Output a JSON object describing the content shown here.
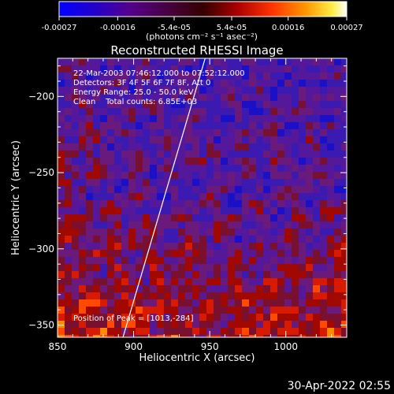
{
  "colorbar": {
    "tick_labels": [
      "-0.00027",
      "-0.00016",
      "-5.4e-05",
      "5.4e-05",
      "0.00016",
      "0.00027"
    ],
    "tick_values": [
      -0.00027,
      -0.00016,
      -5.4e-05,
      5.4e-05,
      0.00016,
      0.00027
    ],
    "range": [
      -0.00027,
      0.00027
    ],
    "units_label": "(photons cm⁻² s⁻¹ asec⁻²)",
    "colors": [
      "#0000ff",
      "#2200aa",
      "#440066",
      "#440000",
      "#990000",
      "#ff3300",
      "#ff8800",
      "#ffdd00",
      "#ffffff"
    ]
  },
  "plot": {
    "title": "Reconstructed RHESSI Image",
    "xlabel": "Heliocentric X (arcsec)",
    "ylabel": "Heliocentric Y (arcsec)",
    "xrange": [
      850,
      1040
    ],
    "yrange": [
      -358,
      -175
    ],
    "xticks": [
      850,
      900,
      950,
      1000
    ],
    "yticks": [
      -200,
      -250,
      -300,
      -350
    ],
    "limb_line": {
      "x1": 893,
      "y1": -358,
      "x2": 947,
      "y2": -175
    }
  },
  "info": {
    "line1": "22-Mar-2003 07:46:12.000 to 07:52:12.000",
    "line2": "Detectors: 3F 4F 5F 6F 7F 8F, Att 0",
    "line3": "Energy Range: 25.0 - 50.0 keV",
    "line4": "Clean    Total counts: 6.85E+03",
    "peak": "Position of Peak = [1013,-284]"
  },
  "footer": {
    "timestamp": "30-Apr-2022 02:55"
  }
}
